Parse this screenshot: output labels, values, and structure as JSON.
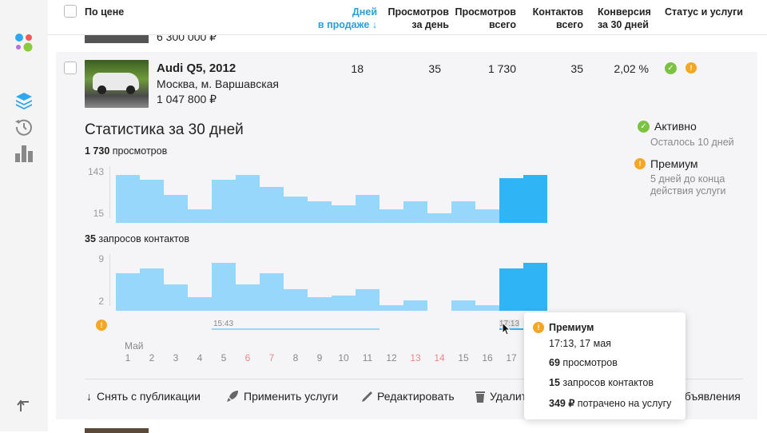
{
  "header": {
    "select_all": "",
    "sort_label": "По цене",
    "columns": [
      {
        "l1": "Дней",
        "l2": "в продаже ↓"
      },
      {
        "l1": "Просмотров",
        "l2": "за день"
      },
      {
        "l1": "Просмотров",
        "l2": "всего"
      },
      {
        "l1": "Контактов",
        "l2": "всего"
      },
      {
        "l1": "Конверсия",
        "l2": "за 30 дней"
      },
      {
        "l1": "Статус и услуги",
        "l2": ""
      }
    ]
  },
  "prev_row": {
    "price": "6 300 000 ₽"
  },
  "listing": {
    "title": "Audi Q5, 2012",
    "location": "Москва, м. Варшавская",
    "price": "1 047 800 ₽",
    "days": "18",
    "views_day": "35",
    "views_total": "1 730",
    "contacts_total": "35",
    "conversion": "2,02 %"
  },
  "stats": {
    "title": "Статистика за 30 дней",
    "views_count": "1 730",
    "views_label": " просмотров",
    "contacts_count": "35",
    "contacts_label": " запросов контактов",
    "month": "Май",
    "timeline": {
      "start_time": "15:43",
      "end_time": "17:13"
    }
  },
  "status": {
    "active": "Активно",
    "active_sub": "Осталось 10 дней",
    "premium": "Премиум",
    "premium_sub1": "5 дней до конца",
    "premium_sub2": "действия услуги"
  },
  "tooltip": {
    "title": "Премиум",
    "datetime": "17:13, 17 мая",
    "views_n": "69",
    "views_t": " просмотров",
    "contacts_n": "15",
    "contacts_t": " запросов контактов",
    "spent_n": "349 ₽",
    "spent_t": " потрачено на услугу"
  },
  "actions": {
    "unpublish": "Снять с публикации",
    "apply": "Применить услуги",
    "edit": "Редактировать",
    "delete": "Удалить",
    "more": "объявления"
  },
  "chart_data": [
    {
      "type": "bar",
      "title": "просмотров",
      "categories": [
        "1",
        "2",
        "3",
        "4",
        "5",
        "6",
        "7",
        "8",
        "9",
        "10",
        "11",
        "12",
        "13",
        "14",
        "15",
        "16",
        "17",
        "18"
      ],
      "weekend": [
        "6",
        "7",
        "13",
        "14"
      ],
      "values": [
        143,
        126,
        69,
        15,
        126,
        143,
        99,
        62,
        44,
        29,
        69,
        15,
        44,
        0,
        44,
        15,
        131,
        143
      ],
      "highlighted_from": "17",
      "yticks": [
        "143",
        "15"
      ],
      "ylim": [
        -35,
        143
      ]
    },
    {
      "type": "bar",
      "title": "запросов контактов",
      "categories": [
        "1",
        "2",
        "3",
        "4",
        "5",
        "6",
        "7",
        "8",
        "9",
        "10",
        "11",
        "12",
        "13",
        "14",
        "15",
        "16",
        "17",
        "18"
      ],
      "values": [
        7,
        8,
        5,
        2.5,
        9,
        5,
        7,
        4,
        2.5,
        2.8,
        4,
        1,
        2,
        0,
        2,
        1,
        8,
        9
      ],
      "highlighted_from": "17",
      "yticks": [
        "9",
        "2"
      ],
      "ylim": [
        0,
        9
      ]
    }
  ],
  "colors": {
    "bar": "#96d7fb",
    "bar_highlight": "#2fb4f6",
    "accent": "#2b9fd9",
    "weekend": "#e58a8a"
  }
}
